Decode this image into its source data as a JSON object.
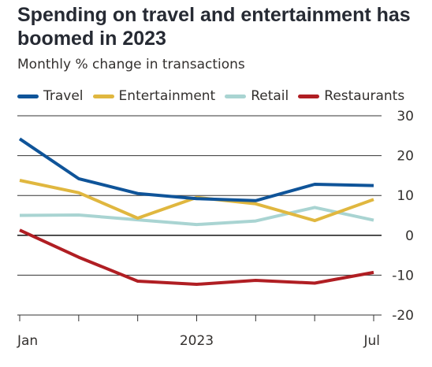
{
  "title": "Spending on travel and entertainment has boomed in 2023",
  "subtitle": "Monthly % change in transactions",
  "colors": {
    "Travel": "#0f5499",
    "Entertainment": "#e0b73f",
    "Retail": "#a9d4d2",
    "Restaurants": "#b01e23",
    "grid": "#333333",
    "zero": "#000000",
    "text": "#33302e"
  },
  "chart_data": {
    "type": "line",
    "title": "Spending on travel and entertainment has boomed in 2023",
    "subtitle": "Monthly % change in transactions",
    "x": [
      "2023-01",
      "2023-02",
      "2023-03",
      "2023-04",
      "2023-05",
      "2023-06",
      "2023-07"
    ],
    "x_tick_labels": [
      "Jan",
      "2023",
      "Jul"
    ],
    "ylim": [
      -20,
      30
    ],
    "yticks": [
      30,
      20,
      10,
      0,
      -10,
      -20
    ],
    "grid": true,
    "legend": "top-left",
    "series": [
      {
        "name": "Travel",
        "values": [
          24.2,
          14.2,
          10.5,
          9.2,
          8.7,
          12.8,
          12.5
        ]
      },
      {
        "name": "Entertainment",
        "values": [
          13.8,
          10.7,
          4.3,
          9.5,
          7.9,
          3.7,
          9.0
        ]
      },
      {
        "name": "Retail",
        "values": [
          5.0,
          5.1,
          3.9,
          2.7,
          3.6,
          7.0,
          3.8
        ]
      },
      {
        "name": "Restaurants",
        "values": [
          1.3,
          -5.5,
          -11.5,
          -12.3,
          -11.3,
          -12.0,
          -9.3
        ]
      }
    ]
  }
}
